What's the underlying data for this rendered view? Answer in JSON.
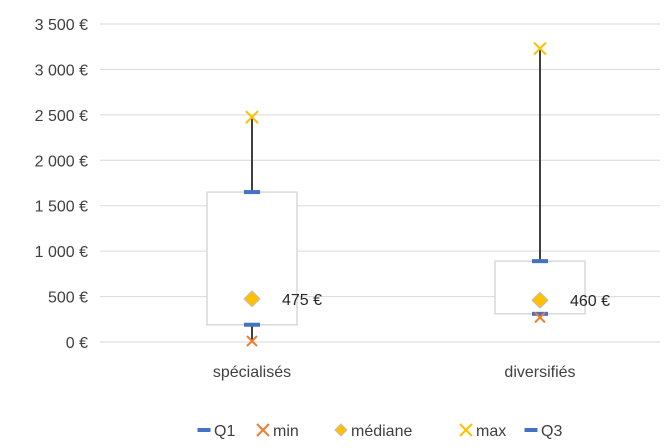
{
  "chart_data": {
    "type": "box",
    "categories": [
      "spécialisés",
      "diversifiés"
    ],
    "ylim": [
      0,
      3500
    ],
    "y_tick_values": [
      0,
      500,
      1000,
      1500,
      2000,
      2500,
      3000,
      3500
    ],
    "y_tick_labels": [
      "0 €",
      "500 €",
      "1 000 €",
      "1 500 €",
      "2 000 €",
      "2 500 €",
      "3 000 €",
      "3 500 €"
    ],
    "grid": true,
    "legend_position": "bottom",
    "series": [
      {
        "name": "Q1",
        "marker": "dash",
        "color": "#4472c4",
        "values": [
          190,
          310
        ]
      },
      {
        "name": "min",
        "marker": "x",
        "color": "#ed7d31",
        "values": [
          10,
          270
        ]
      },
      {
        "name": "médiane",
        "marker": "diamond",
        "color": "#ffc000",
        "values": [
          475,
          460
        ]
      },
      {
        "name": "max",
        "marker": "x",
        "color": "#ffc000",
        "values": [
          2475,
          3230
        ]
      },
      {
        "name": "Q3",
        "marker": "dash",
        "color": "#4472c4",
        "values": [
          1650,
          890
        ]
      }
    ],
    "data_labels": [
      "475 €",
      "460 €"
    ]
  }
}
